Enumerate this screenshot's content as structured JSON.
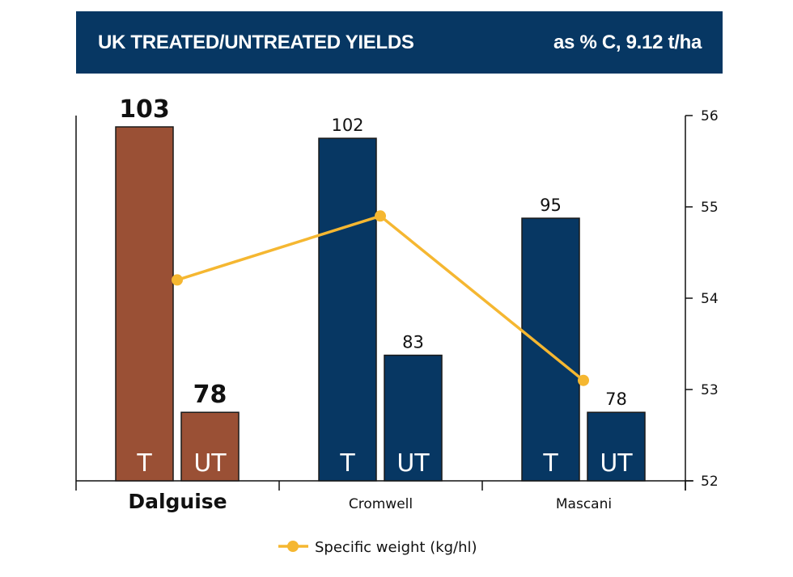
{
  "header": {
    "title": "UK TREATED/UNTREATED YIELDS",
    "subtitle": "as % C, 9.12 t/ha",
    "background": "#073763"
  },
  "chart_data": {
    "type": "bar",
    "title": "UK TREATED/UNTREATED YIELDS",
    "subtitle": "as % C, 9.12 t/ha",
    "categories": [
      "Dalguise",
      "Cromwell",
      "Mascani"
    ],
    "bar_labels": [
      "T",
      "UT"
    ],
    "series": [
      {
        "name": "Treated (T)",
        "values": [
          103,
          102,
          95
        ]
      },
      {
        "name": "Untreated (UT)",
        "values": [
          78,
          83,
          78
        ]
      }
    ],
    "highlight_category": "Dalguise",
    "colors": {
      "highlight": "#9a5035",
      "default": "#073763",
      "line": "#f5b731",
      "bar_text": "#ffffff"
    },
    "left_axis": {
      "visible_ticks": false,
      "range": [
        72,
        104
      ]
    },
    "line_series": {
      "name": "Specific weight (kg/hl)",
      "values": [
        54.2,
        54.9,
        53.1
      ],
      "axis": "right"
    },
    "right_axis": {
      "ticks": [
        52,
        53,
        54,
        55,
        56
      ],
      "range": [
        52,
        56
      ]
    },
    "legend": {
      "position": "bottom-center",
      "entries": [
        "Specific weight (kg/hl)"
      ]
    },
    "grid": false
  }
}
